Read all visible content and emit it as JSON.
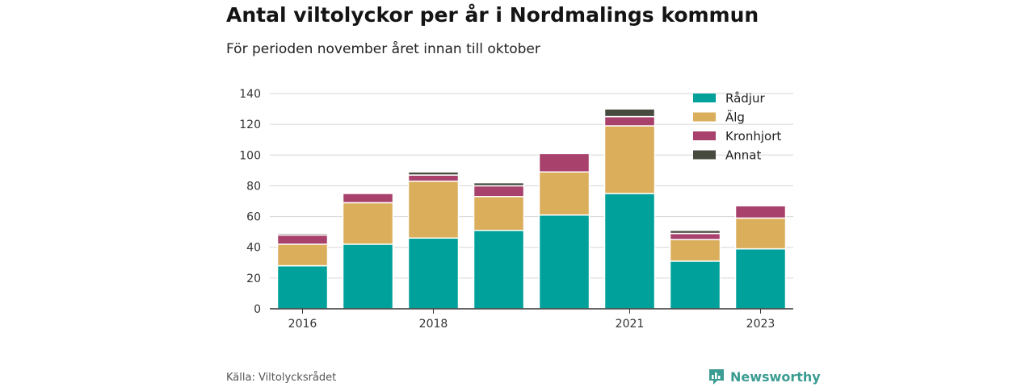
{
  "header": {
    "title": "Antal viltolyckor per år i Nordmalings kommun",
    "subtitle": "För perioden november året innan till oktober"
  },
  "footer": {
    "source": "Källa: Viltolycksrådet",
    "brand": "Newsworthy",
    "brand_icon": "newsworthy-logo-icon"
  },
  "chart_data": {
    "type": "bar",
    "stacked": true,
    "categories": [
      "2016",
      "2017",
      "2018",
      "2019",
      "2020",
      "2021",
      "2022",
      "2023"
    ],
    "x_tick_labels": [
      "2016",
      "2018",
      "2021",
      "2023"
    ],
    "series": [
      {
        "name": "Rådjur",
        "color": "#00a19a",
        "values": [
          28,
          42,
          46,
          51,
          61,
          75,
          31,
          39
        ]
      },
      {
        "name": "Älg",
        "color": "#dbae5c",
        "values": [
          14,
          27,
          37,
          22,
          28,
          44,
          14,
          20
        ]
      },
      {
        "name": "Kronhjort",
        "color": "#a8416b",
        "values": [
          6,
          6,
          4,
          7,
          12,
          6,
          4,
          8
        ]
      },
      {
        "name": "Annat",
        "color": "#474a3e",
        "values": [
          1,
          0,
          2,
          2,
          0,
          5,
          2,
          0
        ]
      }
    ],
    "ylim": [
      0,
      140
    ],
    "yticks": [
      0,
      20,
      40,
      60,
      80,
      100,
      120,
      140
    ],
    "grid": true,
    "legend": "top-right",
    "xlabel": "",
    "ylabel": ""
  }
}
